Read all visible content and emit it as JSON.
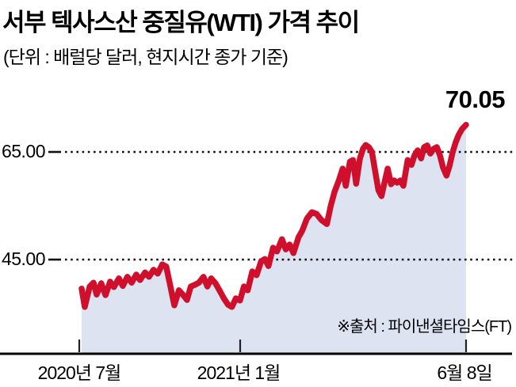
{
  "title": "서부 텍사스산 중질유(WTI) 가격 추이",
  "subtitle": "(단위 : 배럴당 달러, 현지시간 종가 기준)",
  "chart": {
    "peak_label": "70.05",
    "y_axis": {
      "tick_65": "65.00",
      "tick_45": "45.00"
    },
    "x_axis": {
      "tick_1": "2020년 7월",
      "tick_2": "2021년 1월",
      "tick_3": "6월 8일"
    },
    "source": "※출처 : 파이낸셜타임스(FT)",
    "line_color": "#d00f2c",
    "fill_color": "#dde3f1",
    "grid_color": "#111111",
    "axis_color": "#000000"
  },
  "chart_data": {
    "type": "area",
    "title": "서부 텍사스산 중질유(WTI) 가격 추이",
    "ylabel": "배럴당 달러 (현지시간 종가 기준)",
    "source": "파이낸셜타임스(FT)",
    "x_tick_labels": [
      "2020년 7월",
      "2021년 1월",
      "6월 8일"
    ],
    "x_tick_positions": [
      0.0,
      0.412,
      1.0
    ],
    "gridlines": [
      65.0,
      45.0
    ],
    "ylim": [
      33,
      72
    ],
    "last_value": 70.05,
    "legend": "none",
    "series": [
      {
        "name": "WTI",
        "points": [
          [
            0.0,
            39.6
          ],
          [
            0.008,
            36.2
          ],
          [
            0.021,
            40.0
          ],
          [
            0.031,
            40.7
          ],
          [
            0.039,
            38.5
          ],
          [
            0.051,
            40.6
          ],
          [
            0.062,
            38.4
          ],
          [
            0.074,
            40.9
          ],
          [
            0.084,
            39.9
          ],
          [
            0.097,
            41.5
          ],
          [
            0.107,
            40.1
          ],
          [
            0.119,
            41.8
          ],
          [
            0.13,
            40.7
          ],
          [
            0.142,
            42.2
          ],
          [
            0.152,
            41.2
          ],
          [
            0.165,
            42.6
          ],
          [
            0.175,
            41.8
          ],
          [
            0.187,
            43.1
          ],
          [
            0.198,
            42.4
          ],
          [
            0.21,
            44.1
          ],
          [
            0.22,
            43.7
          ],
          [
            0.23,
            40.3
          ],
          [
            0.241,
            36.5
          ],
          [
            0.253,
            39.3
          ],
          [
            0.263,
            38.5
          ],
          [
            0.274,
            37.5
          ],
          [
            0.284,
            40.0
          ],
          [
            0.294,
            40.3
          ],
          [
            0.305,
            40.7
          ],
          [
            0.317,
            41.8
          ],
          [
            0.327,
            40.0
          ],
          [
            0.337,
            41.5
          ],
          [
            0.348,
            40.6
          ],
          [
            0.36,
            39.1
          ],
          [
            0.37,
            37.8
          ],
          [
            0.381,
            36.6
          ],
          [
            0.391,
            36.2
          ],
          [
            0.401,
            37.8
          ],
          [
            0.412,
            37.4
          ],
          [
            0.422,
            40.0
          ],
          [
            0.432,
            39.3
          ],
          [
            0.444,
            42.8
          ],
          [
            0.455,
            42.1
          ],
          [
            0.467,
            44.7
          ],
          [
            0.477,
            45.1
          ],
          [
            0.486,
            43.8
          ],
          [
            0.498,
            47.2
          ],
          [
            0.508,
            46.5
          ],
          [
            0.521,
            48.8
          ],
          [
            0.531,
            46.9
          ],
          [
            0.541,
            47.8
          ],
          [
            0.551,
            46.2
          ],
          [
            0.564,
            49.1
          ],
          [
            0.574,
            50.4
          ],
          [
            0.586,
            52.6
          ],
          [
            0.599,
            53.8
          ],
          [
            0.611,
            53.5
          ],
          [
            0.623,
            52.4
          ],
          [
            0.638,
            51.6
          ],
          [
            0.648,
            55.0
          ],
          [
            0.658,
            57.6
          ],
          [
            0.669,
            59.7
          ],
          [
            0.679,
            61.9
          ],
          [
            0.687,
            58.7
          ],
          [
            0.698,
            63.2
          ],
          [
            0.706,
            63.5
          ],
          [
            0.714,
            59.1
          ],
          [
            0.724,
            63.8
          ],
          [
            0.732,
            65.6
          ],
          [
            0.739,
            66.3
          ],
          [
            0.747,
            65.9
          ],
          [
            0.755,
            65.0
          ],
          [
            0.763,
            61.6
          ],
          [
            0.772,
            57.9
          ],
          [
            0.78,
            56.8
          ],
          [
            0.788,
            59.4
          ],
          [
            0.796,
            61.9
          ],
          [
            0.805,
            59.0
          ],
          [
            0.813,
            59.7
          ],
          [
            0.821,
            59.3
          ],
          [
            0.829,
            59.7
          ],
          [
            0.837,
            58.7
          ],
          [
            0.848,
            63.5
          ],
          [
            0.858,
            62.6
          ],
          [
            0.866,
            64.4
          ],
          [
            0.874,
            65.3
          ],
          [
            0.883,
            63.8
          ],
          [
            0.891,
            65.9
          ],
          [
            0.899,
            66.2
          ],
          [
            0.907,
            64.7
          ],
          [
            0.916,
            65.6
          ],
          [
            0.924,
            65.9
          ],
          [
            0.932,
            64.4
          ],
          [
            0.94,
            62.1
          ],
          [
            0.949,
            60.6
          ],
          [
            0.957,
            62.4
          ],
          [
            0.965,
            64.9
          ],
          [
            0.973,
            66.8
          ],
          [
            0.981,
            68.2
          ],
          [
            0.99,
            69.3
          ],
          [
            1.0,
            70.05
          ]
        ]
      }
    ]
  }
}
